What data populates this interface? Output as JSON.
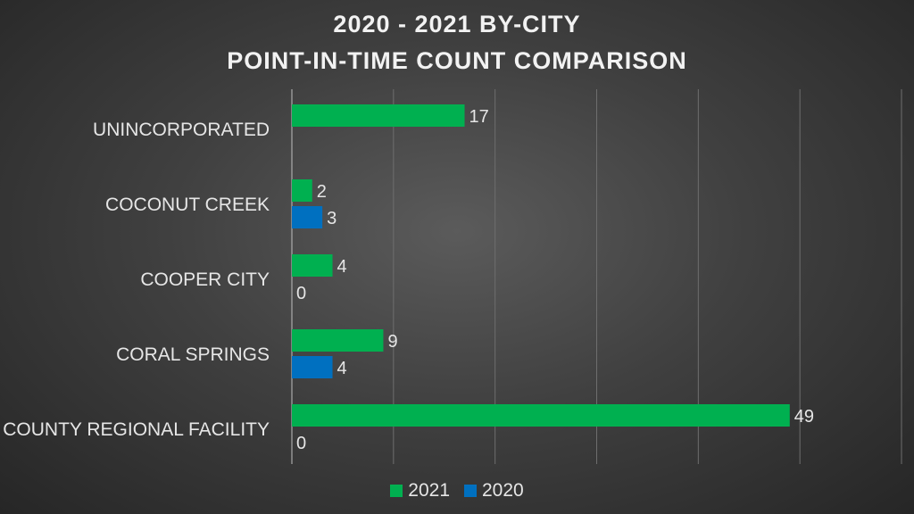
{
  "chart_data": {
    "type": "bar",
    "orientation": "horizontal",
    "title": [
      "2020 - 2021 BY-CITY",
      "POINT-IN-TIME COUNT COMPARISON"
    ],
    "categories": [
      "UNINCORPORATED",
      "COCONUT CREEK",
      "COOPER CITY",
      "CORAL SPRINGS",
      "COUNTY REGIONAL FACILITY"
    ],
    "series": [
      {
        "name": "2021",
        "color": "#00b050",
        "values": [
          17,
          2,
          4,
          9,
          49
        ]
      },
      {
        "name": "2020",
        "color": "#0070c0",
        "values": [
          null,
          3,
          0,
          4,
          0
        ]
      }
    ],
    "xlim": [
      0,
      60
    ],
    "x_gridline_step": 10,
    "x_tick_labels_shown": false,
    "grid": true,
    "legend": "bottom",
    "data_labels": true
  }
}
